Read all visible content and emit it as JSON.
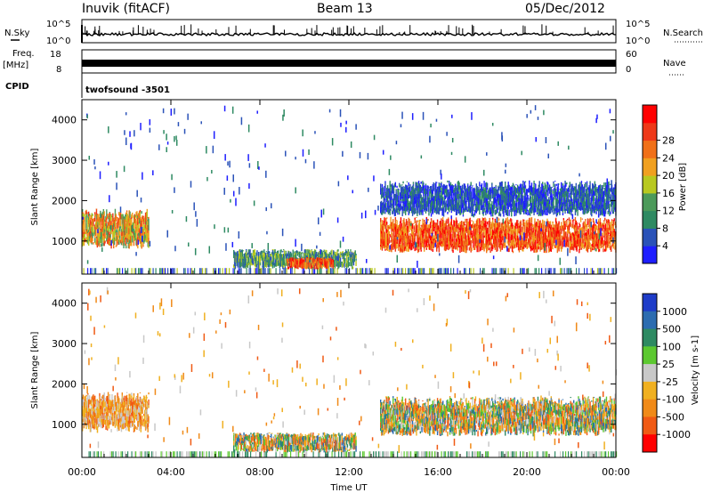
{
  "header": {
    "station": "Inuvik (fitACF)",
    "beam": "Beam 13",
    "date": "05/Dec/2012"
  },
  "strips": {
    "nsky_label": "N.Sky",
    "nsky_top": "10^5",
    "nsky_bottom": "10^0",
    "nsearch_label": "N.Search",
    "nsearch_top": "10^5",
    "nsearch_bottom": "10^0",
    "freq_label": "Freq.",
    "freq_unit": "[MHz]",
    "freq_top": "18",
    "freq_bottom": "8",
    "nave_label": "Nave",
    "nave_top": "60",
    "nave_bottom": "0",
    "cpid_label": "CPID",
    "cpid_value": "twofsound  -3501"
  },
  "chart_data": [
    {
      "type": "heatmap",
      "panel": "power",
      "ylabel": "Slant Range [km]",
      "ylim": [
        180,
        4500
      ],
      "yticks": [
        1000,
        2000,
        3000,
        4000
      ],
      "xlim_hours": [
        0,
        24
      ],
      "colorbar": {
        "label": "Power [dB]",
        "ticks": [
          "4",
          "8",
          "12",
          "16",
          "20",
          "24",
          "28"
        ],
        "colors": [
          "#1e1eff",
          "#2a52b8",
          "#2e8a62",
          "#4c9a5a",
          "#b8c820",
          "#f0a020",
          "#f07018",
          "#ee3818",
          "#ff0000"
        ]
      },
      "echo_regions": [
        {
          "t0": 0.0,
          "t1": 3.0,
          "r0": 800,
          "r1": 1800,
          "level": "medium-high"
        },
        {
          "t0": 6.8,
          "t1": 12.3,
          "r0": 300,
          "r1": 800,
          "level": "low-medium"
        },
        {
          "t0": 9.2,
          "t1": 11.3,
          "r0": 300,
          "r1": 600,
          "level": "high"
        },
        {
          "t0": 13.4,
          "t1": 24.0,
          "r0": 700,
          "r1": 1600,
          "level": "high"
        },
        {
          "t0": 13.4,
          "t1": 24.0,
          "r0": 1600,
          "r1": 2500,
          "level": "low"
        }
      ]
    },
    {
      "type": "heatmap",
      "panel": "velocity",
      "ylabel": "Slant Range [km]",
      "ylim": [
        180,
        4500
      ],
      "yticks": [
        1000,
        2000,
        3000,
        4000
      ],
      "xlim_hours": [
        0,
        24
      ],
      "colorbar": {
        "label": "Velocity [m s-1]",
        "ticks": [
          "1000",
          "500",
          "100",
          "25",
          "-25",
          "-100",
          "-500",
          "-1000"
        ],
        "colors": [
          "#1e3cc8",
          "#2c6cb0",
          "#2e8a62",
          "#5cc830",
          "#c8c8c8",
          "#f0b020",
          "#f08a18",
          "#f05a14",
          "#ff0000"
        ]
      },
      "echo_regions": [
        {
          "t0": 0.0,
          "t1": 3.0,
          "r0": 800,
          "r1": 1800,
          "level": "negative"
        },
        {
          "t0": 6.8,
          "t1": 12.3,
          "r0": 300,
          "r1": 800,
          "level": "mixed"
        },
        {
          "t0": 13.4,
          "t1": 24.0,
          "r0": 700,
          "r1": 1700,
          "level": "mixed"
        }
      ]
    }
  ],
  "x_axis": {
    "ticks": [
      "00:00",
      "04:00",
      "08:00",
      "12:00",
      "16:00",
      "20:00",
      "00:00"
    ],
    "label": "Time UT"
  }
}
